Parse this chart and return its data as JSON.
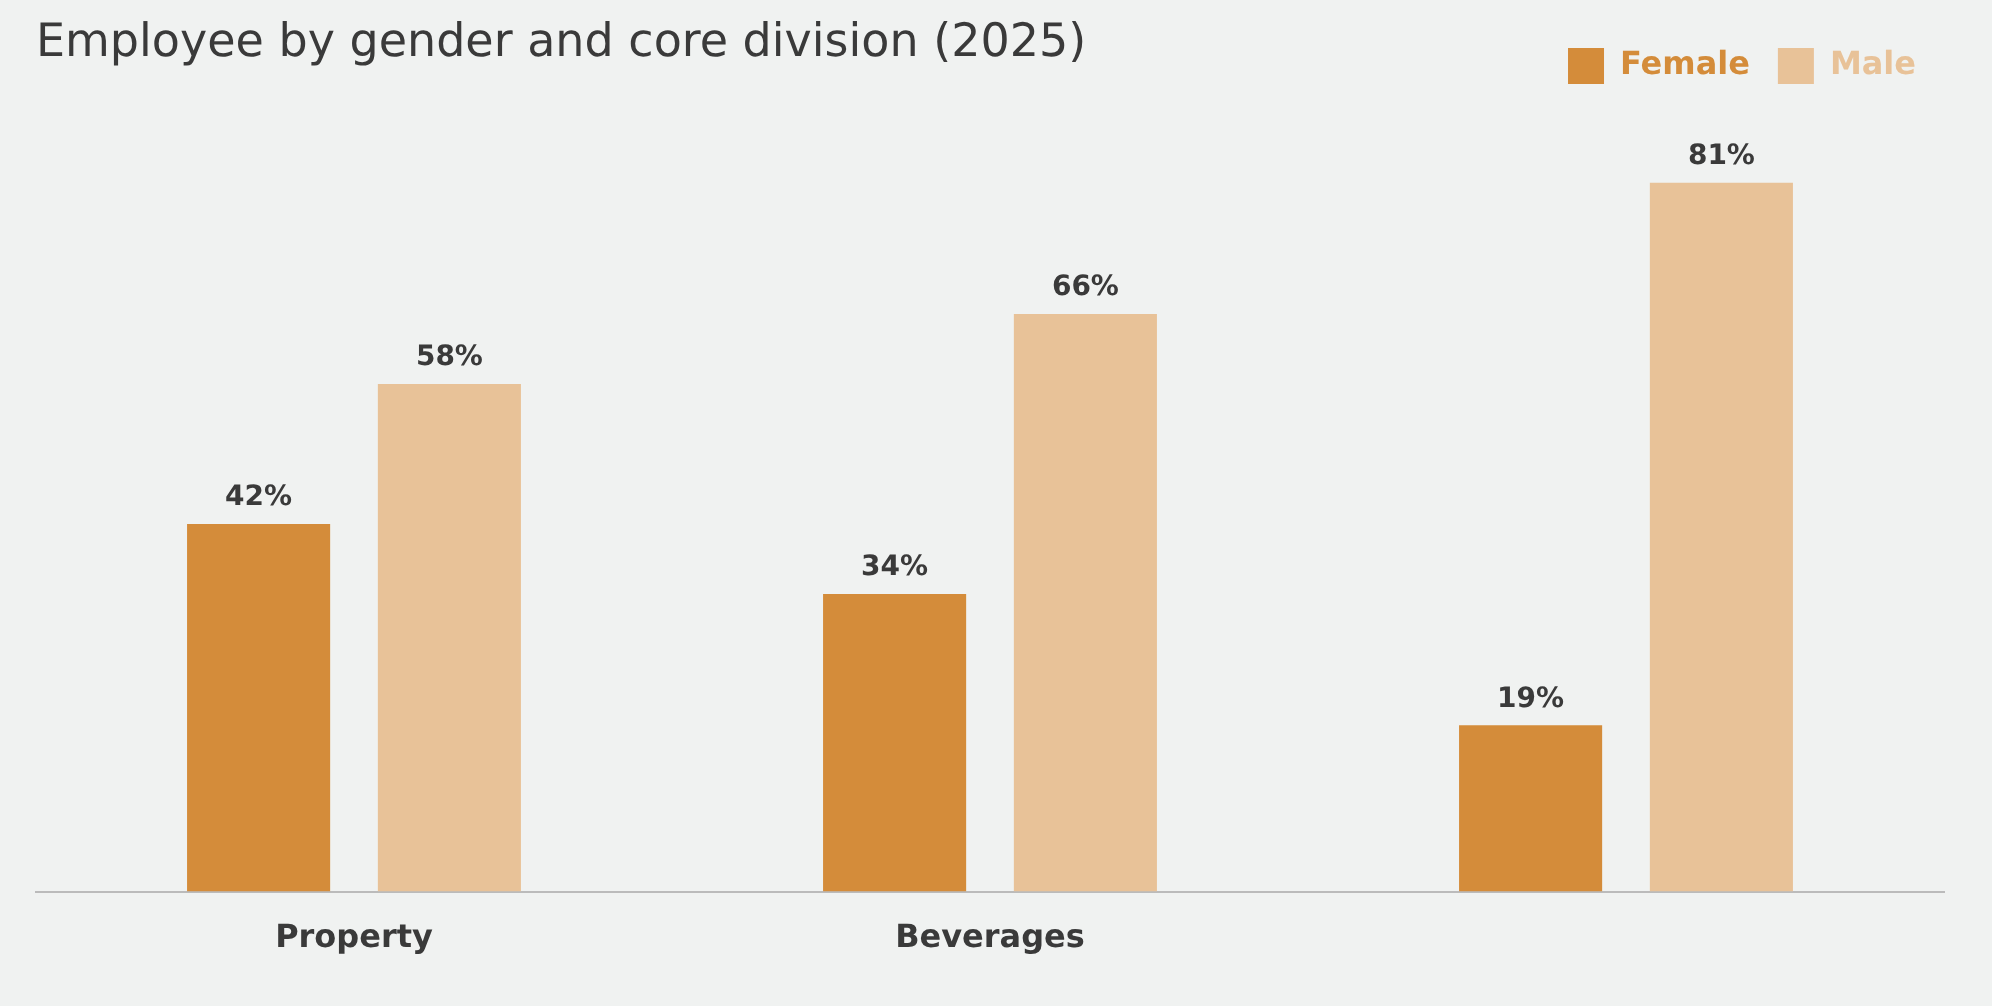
{
  "chart_data": {
    "type": "bar",
    "title": "Employee by gender and core division (2025)",
    "categories": [
      "Property",
      "Beverages",
      null
    ],
    "series": [
      {
        "name": "Female",
        "color": "#d48c3a",
        "values": [
          42,
          34,
          19
        ],
        "value_labels": [
          "42%",
          "34%",
          "19%"
        ]
      },
      {
        "name": "Male",
        "color": "#e8c298",
        "values": [
          58,
          66,
          81
        ],
        "value_labels": [
          "58%",
          "66%",
          "81%"
        ]
      }
    ],
    "legend": "top right",
    "grid": false,
    "tick_labels": "x"
  }
}
